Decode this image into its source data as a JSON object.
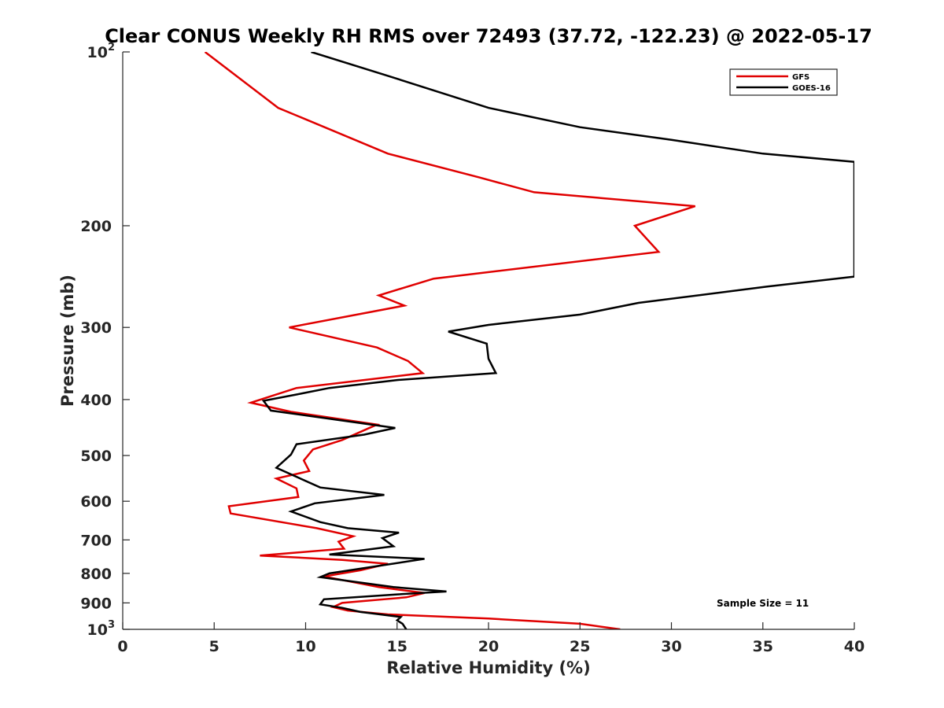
{
  "chart_data": {
    "type": "line",
    "title": "Clear CONUS Weekly RH RMS over 72493 (37.72, -122.23) @ 2022-05-17",
    "xlabel": "Relative Humidity (%)",
    "ylabel": "Pressure (mb)",
    "xlim": [
      0,
      40
    ],
    "ylim": [
      100,
      1000
    ],
    "y_scale": "log",
    "y_reversed": true,
    "x_ticks": [
      "0",
      "5",
      "10",
      "15",
      "20",
      "25",
      "30",
      "35",
      "40"
    ],
    "y_ticks": [
      {
        "value": 100,
        "base": "10",
        "exp": "2"
      },
      {
        "value": 200,
        "label": "200"
      },
      {
        "value": 300,
        "label": "300"
      },
      {
        "value": 400,
        "label": "400"
      },
      {
        "value": 500,
        "label": "500"
      },
      {
        "value": 600,
        "label": "600"
      },
      {
        "value": 700,
        "label": "700"
      },
      {
        "value": 800,
        "label": "800"
      },
      {
        "value": 900,
        "label": "900"
      },
      {
        "value": 1000,
        "base": "10",
        "exp": "3"
      }
    ],
    "legend_position": "top-right",
    "grid": false,
    "annotation": "Sample Size = 11",
    "series": [
      {
        "name": "GFS",
        "color": "#e00000",
        "points": [
          [
            4.5,
            100
          ],
          [
            8.5,
            125
          ],
          [
            14.5,
            150
          ],
          [
            19.5,
            165
          ],
          [
            22.5,
            175
          ],
          [
            31.3,
            185
          ],
          [
            28.0,
            200
          ],
          [
            29.3,
            222
          ],
          [
            17.0,
            247
          ],
          [
            14.0,
            264
          ],
          [
            15.4,
            275
          ],
          [
            9.1,
            300
          ],
          [
            13.9,
            325
          ],
          [
            15.6,
            343
          ],
          [
            16.4,
            360
          ],
          [
            9.5,
            382
          ],
          [
            7.0,
            405
          ],
          [
            9.2,
            420
          ],
          [
            13.9,
            442
          ],
          [
            12.0,
            470
          ],
          [
            10.4,
            488
          ],
          [
            9.9,
            510
          ],
          [
            10.2,
            532
          ],
          [
            8.4,
            548
          ],
          [
            9.5,
            570
          ],
          [
            9.6,
            590
          ],
          [
            5.8,
            612
          ],
          [
            5.9,
            630
          ],
          [
            10.6,
            668
          ],
          [
            12.6,
            690
          ],
          [
            11.8,
            705
          ],
          [
            12.1,
            725
          ],
          [
            7.5,
            745
          ],
          [
            12.0,
            758
          ],
          [
            14.5,
            770
          ],
          [
            13.0,
            790
          ],
          [
            11.0,
            810
          ],
          [
            14.0,
            845
          ],
          [
            16.5,
            865
          ],
          [
            15.5,
            880
          ],
          [
            12.0,
            900
          ],
          [
            11.5,
            915
          ],
          [
            12.3,
            928
          ],
          [
            14.5,
            942
          ],
          [
            20.0,
            958
          ],
          [
            25.0,
            978
          ],
          [
            27.2,
            1000
          ]
        ]
      },
      {
        "name": "GOES-16",
        "color": "#000000",
        "points": [
          [
            10.3,
            100
          ],
          [
            14.5,
            110
          ],
          [
            20.0,
            125
          ],
          [
            25.0,
            135
          ],
          [
            30.0,
            142
          ],
          [
            35.0,
            150
          ],
          [
            40.0,
            155
          ],
          [
            40.0,
            245
          ],
          [
            35.2,
            255
          ],
          [
            28.2,
            272
          ],
          [
            25.0,
            285
          ],
          [
            20.0,
            297
          ],
          [
            17.8,
            305
          ],
          [
            19.9,
            320
          ],
          [
            20.0,
            340
          ],
          [
            20.4,
            360
          ],
          [
            15.0,
            370
          ],
          [
            11.3,
            382
          ],
          [
            9.5,
            392
          ],
          [
            7.7,
            402
          ],
          [
            8.1,
            418
          ],
          [
            14.9,
            448
          ],
          [
            13.2,
            460
          ],
          [
            9.5,
            478
          ],
          [
            9.2,
            498
          ],
          [
            8.4,
            525
          ],
          [
            10.8,
            568
          ],
          [
            14.3,
            585
          ],
          [
            10.5,
            605
          ],
          [
            9.2,
            625
          ],
          [
            10.8,
            652
          ],
          [
            12.3,
            668
          ],
          [
            15.1,
            680
          ],
          [
            14.2,
            695
          ],
          [
            14.8,
            718
          ],
          [
            11.3,
            742
          ],
          [
            16.5,
            755
          ],
          [
            11.3,
            800
          ],
          [
            10.8,
            812
          ],
          [
            14.8,
            845
          ],
          [
            17.7,
            860
          ],
          [
            15.0,
            870
          ],
          [
            11.0,
            887
          ],
          [
            10.8,
            905
          ],
          [
            12.0,
            918
          ],
          [
            13.0,
            933
          ],
          [
            15.2,
            952
          ],
          [
            15.0,
            965
          ],
          [
            15.3,
            978
          ],
          [
            15.5,
            1000
          ]
        ]
      }
    ]
  }
}
